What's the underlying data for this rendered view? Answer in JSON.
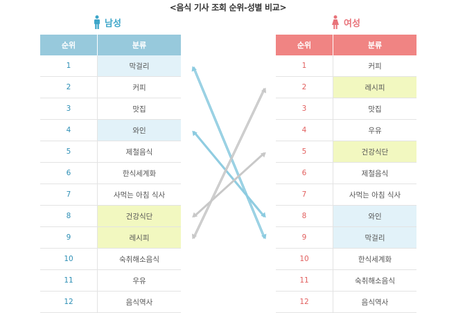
{
  "title": "<음식 기사 조회 순위-성별 비교>",
  "colors": {
    "male": "#3ea6c9",
    "female": "#e8737a",
    "male_header": "#97c9dc",
    "female_header": "#f08483",
    "highlight_blue": "#e2f2f9",
    "highlight_yellow": "#f2f8c0",
    "arrow_blue": "#8ccbe0",
    "arrow_gray": "#c8c8c8"
  },
  "male": {
    "label": "남성",
    "icon": "male-person-icon",
    "header": {
      "rank": "순위",
      "category": "분류"
    },
    "rows": [
      {
        "rank": "1",
        "category": "막걸리",
        "highlight": "blue"
      },
      {
        "rank": "2",
        "category": "커피",
        "highlight": ""
      },
      {
        "rank": "3",
        "category": "맛집",
        "highlight": ""
      },
      {
        "rank": "4",
        "category": "와인",
        "highlight": "blue"
      },
      {
        "rank": "5",
        "category": "제철음식",
        "highlight": ""
      },
      {
        "rank": "6",
        "category": "한식세계화",
        "highlight": ""
      },
      {
        "rank": "7",
        "category": "사먹는 아침 식사",
        "highlight": ""
      },
      {
        "rank": "8",
        "category": "건강식단",
        "highlight": "yellow"
      },
      {
        "rank": "9",
        "category": "레시피",
        "highlight": "yellow"
      },
      {
        "rank": "10",
        "category": "숙취해소음식",
        "highlight": ""
      },
      {
        "rank": "11",
        "category": "우유",
        "highlight": ""
      },
      {
        "rank": "12",
        "category": "음식역사",
        "highlight": ""
      }
    ]
  },
  "female": {
    "label": "여성",
    "icon": "female-person-icon",
    "header": {
      "rank": "순위",
      "category": "분류"
    },
    "rows": [
      {
        "rank": "1",
        "category": "커피",
        "highlight": ""
      },
      {
        "rank": "2",
        "category": "레시피",
        "highlight": "yellow"
      },
      {
        "rank": "3",
        "category": "맛집",
        "highlight": ""
      },
      {
        "rank": "4",
        "category": "우유",
        "highlight": ""
      },
      {
        "rank": "5",
        "category": "건강식단",
        "highlight": "yellow"
      },
      {
        "rank": "6",
        "category": "제철음식",
        "highlight": ""
      },
      {
        "rank": "7",
        "category": "사먹는 아침 식사",
        "highlight": ""
      },
      {
        "rank": "8",
        "category": "와인",
        "highlight": "blue"
      },
      {
        "rank": "9",
        "category": "막걸리",
        "highlight": "blue"
      },
      {
        "rank": "10",
        "category": "한식세계화",
        "highlight": ""
      },
      {
        "rank": "11",
        "category": "숙취해소음식",
        "highlight": ""
      },
      {
        "rank": "12",
        "category": "음식역사",
        "highlight": ""
      }
    ]
  },
  "connections": [
    {
      "male_rank": 1,
      "female_rank": 9,
      "color": "blue"
    },
    {
      "male_rank": 4,
      "female_rank": 8,
      "color": "blue"
    },
    {
      "male_rank": 8,
      "female_rank": 5,
      "color": "gray"
    },
    {
      "male_rank": 9,
      "female_rank": 2,
      "color": "gray"
    }
  ]
}
